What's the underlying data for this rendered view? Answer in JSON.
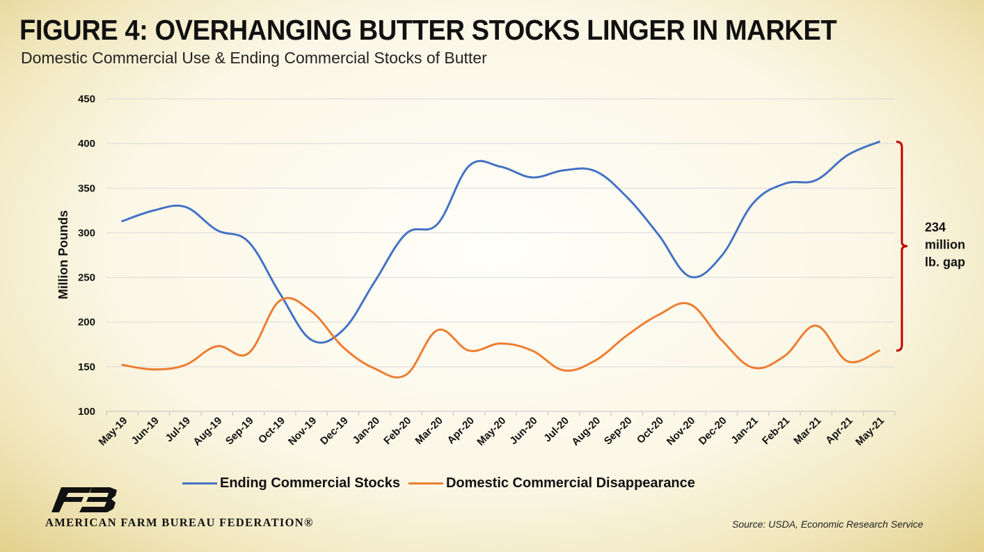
{
  "header": {
    "title": "FIGURE 4: OVERHANGING BUTTER STOCKS LINGER IN MARKET",
    "subtitle": "Domestic Commercial Use & Ending Commercial Stocks of Butter"
  },
  "chart_data": {
    "type": "line",
    "title": "FIGURE 4: OVERHANGING BUTTER STOCKS LINGER IN MARKET",
    "subtitle": "Domestic Commercial Use & Ending Commercial Stocks of Butter",
    "xlabel": "",
    "ylabel": "Million Pounds",
    "ylim": [
      100,
      450
    ],
    "yticks": [
      100,
      150,
      200,
      250,
      300,
      350,
      400,
      450
    ],
    "grid": true,
    "legend_position": "bottom",
    "categories": [
      "May-19",
      "Jun-19",
      "Jul-19",
      "Aug-19",
      "Sep-19",
      "Oct-19",
      "Nov-19",
      "Dec-19",
      "Jan-20",
      "Feb-20",
      "Mar-20",
      "Apr-20",
      "May-20",
      "Jun-20",
      "Jul-20",
      "Aug-20",
      "Sep-20",
      "Oct-20",
      "Nov-20",
      "Dec-20",
      "Jan-21",
      "Feb-21",
      "Mar-21",
      "Apr-21",
      "May-21"
    ],
    "series": [
      {
        "name": "Ending Commercial Stocks",
        "color": "#4472C4",
        "values": [
          313,
          325,
          329,
          303,
          290,
          232,
          180,
          191,
          245,
          299,
          310,
          375,
          374,
          362,
          370,
          369,
          340,
          298,
          251,
          274,
          333,
          355,
          359,
          387,
          402
        ]
      },
      {
        "name": "Domestic Commercial Disappearance",
        "color": "#ED7D31",
        "values": [
          152,
          147,
          152,
          173,
          165,
          224,
          212,
          172,
          148,
          141,
          191,
          168,
          176,
          168,
          146,
          157,
          185,
          208,
          220,
          180,
          149,
          162,
          196,
          156,
          168
        ]
      }
    ],
    "annotations": [
      {
        "text_lines": [
          "234",
          "million",
          "lb. gap"
        ],
        "bracket_from": 168,
        "bracket_to": 402,
        "color": "#C00000"
      }
    ]
  },
  "footer": {
    "logo_text": "AMERICAN FARM BUREAU FEDERATION®",
    "source": "Source: USDA, Economic Research Service"
  }
}
